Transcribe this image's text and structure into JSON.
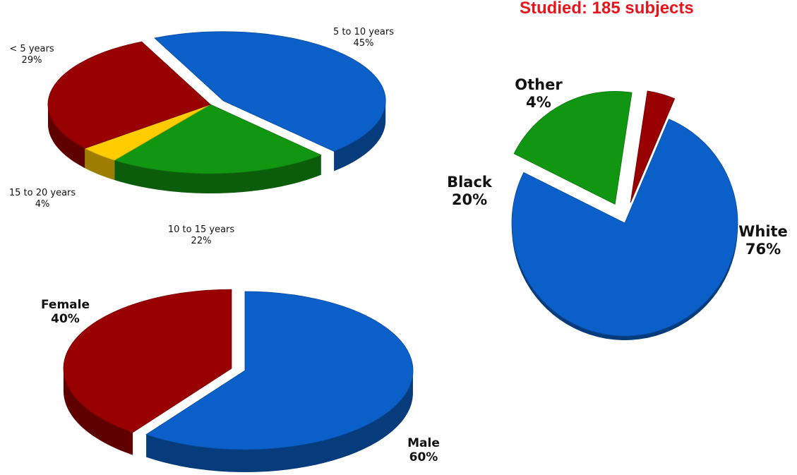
{
  "headline": "Studied: 185 subjects",
  "colors": {
    "blue": "#0a5fc8",
    "red": "#990000",
    "green": "#119611",
    "yellow": "#ffcc00"
  },
  "chart_data": [
    {
      "type": "pie",
      "title": "",
      "slices": [
        {
          "label": "5 to 10 years",
          "value_label": "45%",
          "value": 45,
          "color": "blue",
          "exploded": true
        },
        {
          "label": "10 to 15 years",
          "value_label": "22%",
          "value": 22,
          "color": "green",
          "exploded": false
        },
        {
          "label": "15 to 20 years",
          "value_label": "4%",
          "value": 4,
          "color": "yellow",
          "exploded": false
        },
        {
          "label": "< 5 years",
          "value_label": "29%",
          "value": 29,
          "color": "red",
          "exploded": false
        }
      ]
    },
    {
      "type": "pie",
      "title": "",
      "slices": [
        {
          "label": "White",
          "value_label": "76%",
          "value": 76,
          "color": "blue",
          "exploded": false
        },
        {
          "label": "Black",
          "value_label": "20%",
          "value": 20,
          "color": "green",
          "exploded": true
        },
        {
          "label": "Other",
          "value_label": "4%",
          "value": 4,
          "color": "red",
          "exploded": true
        }
      ]
    },
    {
      "type": "pie",
      "title": "",
      "slices": [
        {
          "label": "Male",
          "value_label": "60%",
          "value": 60,
          "color": "blue",
          "exploded": false
        },
        {
          "label": "Female",
          "value_label": "40%",
          "value": 40,
          "color": "red",
          "exploded": true
        }
      ]
    }
  ]
}
